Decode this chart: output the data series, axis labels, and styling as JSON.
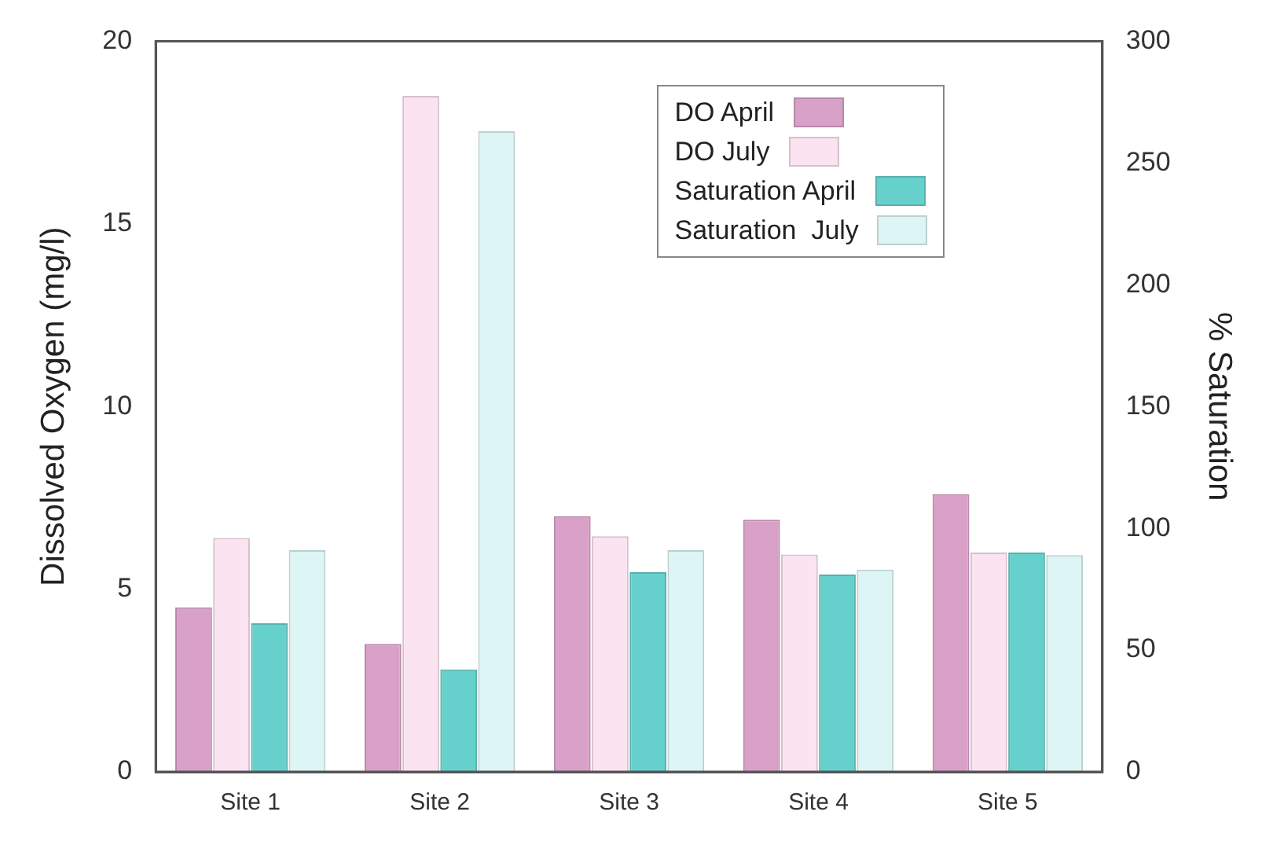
{
  "chart_data": {
    "type": "bar",
    "ylabel": "Dissolved Oxygen (mg/l)",
    "y2label": "% Saturation",
    "categories": [
      "Site 1",
      "Site 2",
      "Site 3",
      "Site 4",
      "Site 5"
    ],
    "series": [
      {
        "name": "DO April",
        "color": "#d9a0c8",
        "values": [
          4.5,
          3.5,
          7.0,
          6.9,
          7.6
        ]
      },
      {
        "name": "DO July",
        "color": "#fbe3f2",
        "values": [
          6.4,
          18.5,
          6.45,
          5.95,
          6.0
        ]
      },
      {
        "name": "Saturation April",
        "color": "#66d0cc",
        "axis": "y2",
        "values": [
          61,
          42,
          82,
          81,
          90
        ]
      },
      {
        "name": "Saturation  July",
        "color": "#ddf5f5",
        "axis": "y2",
        "values": [
          91,
          263,
          91,
          83,
          89
        ]
      }
    ],
    "ylim": [
      0,
      20
    ],
    "yticks": [
      0,
      5,
      10,
      15,
      20
    ],
    "y2lim": [
      0,
      300
    ],
    "y2ticks": [
      0,
      50,
      100,
      150,
      200,
      250,
      300
    ],
    "grid": false,
    "legend": "top right"
  }
}
